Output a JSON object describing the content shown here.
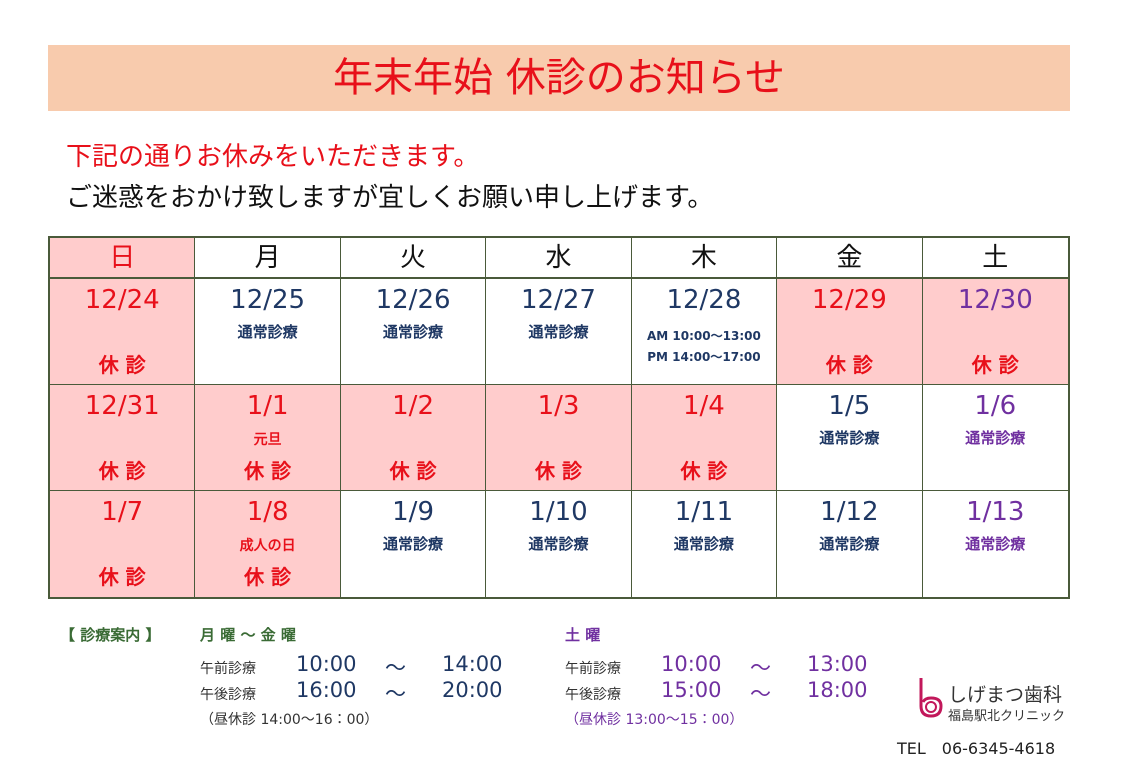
{
  "header": {
    "title": "年末年始 休診のお知らせ"
  },
  "intro": [
    "下記の通りお休みをいただきます。",
    "ご迷惑をおかけ致しますが宜しくお願い申し上げます。"
  ],
  "calendar": {
    "weekdays": [
      "日",
      "月",
      "火",
      "水",
      "木",
      "金",
      "土"
    ],
    "weeks": [
      [
        {
          "date": "12/24",
          "closed": "休 診"
        },
        {
          "date": "12/25",
          "open": "通常診療"
        },
        {
          "date": "12/26",
          "open": "通常診療"
        },
        {
          "date": "12/27",
          "open": "通常診療"
        },
        {
          "date": "12/28",
          "hours": [
            "AM 10:00～13:00",
            "PM 14:00～17:00"
          ]
        },
        {
          "date": "12/29",
          "closed": "休 診"
        },
        {
          "date": "12/30",
          "closed": "休 診"
        }
      ],
      [
        {
          "date": "12/31",
          "closed": "休 診"
        },
        {
          "date": "1/1",
          "note": "元旦",
          "closed": "休 診"
        },
        {
          "date": "1/2",
          "closed": "休 診"
        },
        {
          "date": "1/3",
          "closed": "休 診"
        },
        {
          "date": "1/4",
          "closed": "休 診"
        },
        {
          "date": "1/5",
          "open": "通常診療"
        },
        {
          "date": "1/6",
          "open": "通常診療"
        }
      ],
      [
        {
          "date": "1/7",
          "closed": "休 診"
        },
        {
          "date": "1/8",
          "note": "成人の日",
          "closed": "休 診"
        },
        {
          "date": "1/9",
          "open": "通常診療"
        },
        {
          "date": "1/10",
          "open": "通常診療"
        },
        {
          "date": "1/11",
          "open": "通常診療"
        },
        {
          "date": "1/12",
          "open": "通常診療"
        },
        {
          "date": "1/13",
          "open": "通常診療"
        }
      ]
    ]
  },
  "hours": {
    "label": "【 診療案内 】",
    "weekday": {
      "title": "月 曜 ～ 金 曜",
      "rows": [
        [
          "午前診療",
          "10:00",
          "～",
          "14:00"
        ],
        [
          "午後診療",
          "16:00",
          "～",
          "20:00"
        ]
      ],
      "note": "（昼休診 14:00～16：00）"
    },
    "saturday": {
      "title": "土 曜",
      "rows": [
        [
          "午前診療",
          "10:00",
          "～",
          "13:00"
        ],
        [
          "午後診療",
          "15:00",
          "～",
          "18:00"
        ]
      ],
      "note": "（昼休診 13:00～15：00）"
    }
  },
  "clinic": {
    "name": "しげまつ歯科",
    "branch": "福島駅北クリニック",
    "tel": "TEL　06-6345-4618"
  }
}
